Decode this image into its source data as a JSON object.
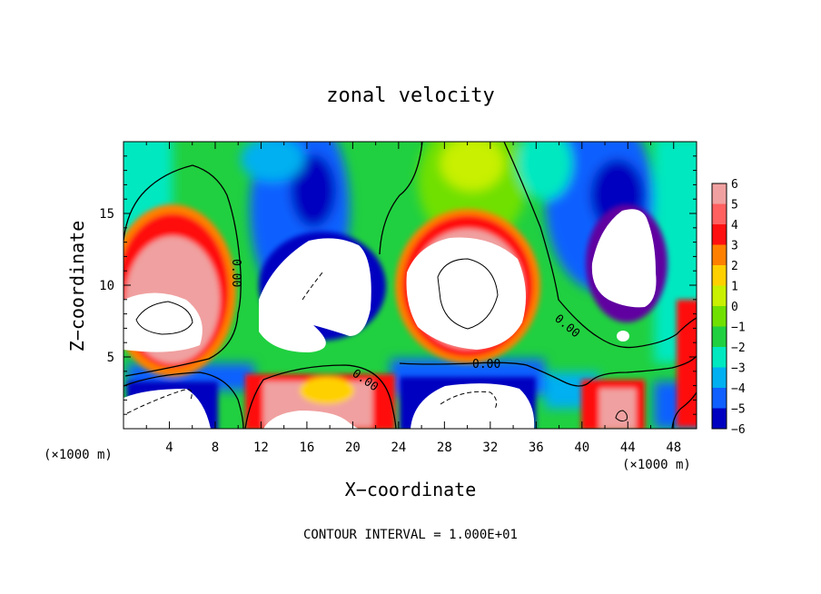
{
  "chart_data": {
    "type": "heatmap",
    "title": "zonal velocity",
    "xlabel": "X−coordinate",
    "ylabel": "Z−coordinate",
    "x_unit_left": "(×1000 m)",
    "x_unit_right": "(×1000 m)",
    "footer": "CONTOUR INTERVAL = 1.000E+01",
    "xlim": [
      0,
      50
    ],
    "ylim": [
      0,
      20
    ],
    "x_ticks": [
      "4",
      "8",
      "12",
      "16",
      "20",
      "24",
      "28",
      "32",
      "36",
      "40",
      "44",
      "48"
    ],
    "y_ticks": [
      "5",
      "10",
      "15"
    ],
    "colorbar": {
      "labels": [
        "6",
        "5",
        "4",
        "3",
        "2",
        "1",
        "0",
        "−1",
        "−2",
        "−3",
        "−4",
        "−5",
        "−6"
      ],
      "values": [
        6,
        5,
        4,
        3,
        2,
        1,
        0,
        -1,
        -2,
        -3,
        -4,
        -5,
        -6
      ],
      "colors": [
        "#f0a0a0",
        "#ff6060",
        "#ff1010",
        "#ff8000",
        "#ffd000",
        "#c8f000",
        "#70e000",
        "#20d040",
        "#00e8c0",
        "#00b0f0",
        "#1060ff",
        "#0000c0",
        "#6000a0"
      ]
    },
    "contour_labels": [
      "0.00",
      "0.00",
      "0.00",
      "0.00",
      "0.00"
    ],
    "field_colors": {
      "high": "#ffffff",
      "pos_strong": "#ff1010",
      "pos_mid": "#ff8000",
      "pos_weak": "#c8f000",
      "zero": "#70e000",
      "neg_weak": "#00e8c0",
      "neg_mid": "#00b0f0",
      "neg_strong": "#0000c0",
      "neg_max": "#6000a0"
    }
  }
}
